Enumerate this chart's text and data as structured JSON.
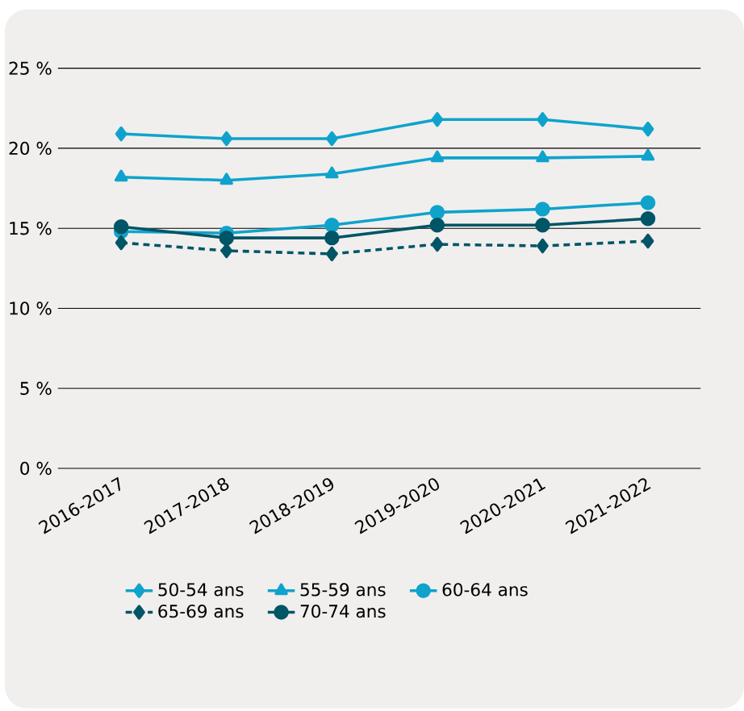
{
  "chart_data": {
    "type": "line",
    "categories": [
      "2016-2017",
      "2017-2018",
      "2018-2019",
      "2019-2020",
      "2020-2021",
      "2021-2022"
    ],
    "ylim": [
      0,
      25
    ],
    "yticks": [
      {
        "value": 0,
        "label": "0 %"
      },
      {
        "value": 5,
        "label": "5 %"
      },
      {
        "value": 10,
        "label": "10 %"
      },
      {
        "value": 15,
        "label": "15 %"
      },
      {
        "value": 20,
        "label": "20 %"
      },
      {
        "value": 25,
        "label": "25 %"
      }
    ],
    "grid": "y",
    "legend": "bottom",
    "series": [
      {
        "name": "50-54 ans",
        "color": "#0fa3cc",
        "marker": "diamond",
        "line_style": "solid",
        "values": [
          20.9,
          20.6,
          20.6,
          21.8,
          21.8,
          21.2
        ]
      },
      {
        "name": "55-59 ans",
        "color": "#0fa3cc",
        "marker": "triangle",
        "line_style": "solid",
        "values": [
          18.2,
          18.0,
          18.4,
          19.4,
          19.4,
          19.5
        ]
      },
      {
        "name": "60-64 ans",
        "color": "#0fa3cc",
        "marker": "circle",
        "line_style": "solid",
        "values": [
          14.8,
          14.7,
          15.2,
          16.0,
          16.2,
          16.6
        ]
      },
      {
        "name": "65-69 ans",
        "color": "#005566",
        "marker": "diamond",
        "line_style": "dashed",
        "values": [
          14.1,
          13.6,
          13.4,
          14.0,
          13.9,
          14.2
        ]
      },
      {
        "name": "70-74 ans",
        "color": "#005566",
        "marker": "circle",
        "line_style": "solid",
        "values": [
          15.1,
          14.4,
          14.4,
          15.2,
          15.2,
          15.6
        ]
      }
    ]
  }
}
